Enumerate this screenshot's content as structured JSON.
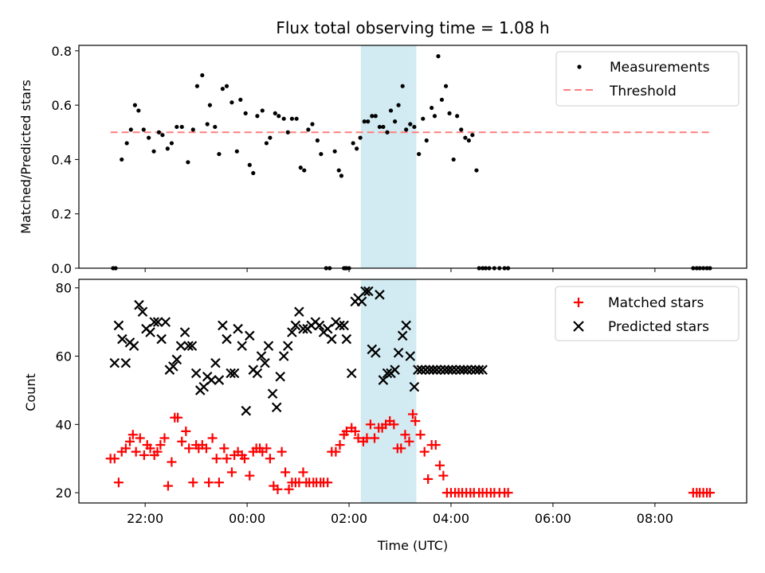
{
  "chart_data": [
    {
      "type": "scatter",
      "title": "Flux total observing time = 1.08 h",
      "xlabel": "",
      "ylabel": "Matched/Predicted stars",
      "x_unit": "hours relative to 00:00 UTC",
      "ylim": [
        0,
        0.82
      ],
      "yticks": [
        "0.0",
        "0.2",
        "0.4",
        "0.6",
        "0.8"
      ],
      "highlight_span": {
        "x0": 2.23,
        "x1": 3.32,
        "color": "#add8e6"
      },
      "threshold": {
        "y": 0.5,
        "x0": -2.68,
        "x1": 9.13,
        "color": "#ff7f7f"
      },
      "legend": {
        "location": "top-right",
        "entries": [
          "Measurements",
          "Threshold"
        ]
      },
      "series": [
        {
          "name": "Measurements",
          "marker": "dot",
          "color": "#000000",
          "x": [
            -2.63,
            -2.58,
            -2.46,
            -2.36,
            -2.28,
            -2.2,
            -2.13,
            -2.03,
            -1.93,
            -1.83,
            -1.73,
            -1.66,
            -1.56,
            -1.48,
            -1.38,
            -1.28,
            -1.16,
            -1.06,
            -0.98,
            -0.88,
            -0.78,
            -0.73,
            -0.63,
            -0.55,
            -0.48,
            -0.4,
            -0.3,
            -0.2,
            -0.13,
            -0.03,
            0.05,
            0.12,
            0.2,
            0.3,
            0.38,
            0.45,
            0.55,
            0.62,
            0.72,
            0.8,
            0.88,
            0.97,
            1.05,
            1.12,
            1.2,
            1.28,
            1.38,
            1.45,
            1.55,
            1.62,
            1.72,
            1.8,
            1.85,
            1.9,
            1.92,
            1.95,
            2.0,
            2.08,
            2.15,
            2.22,
            2.3,
            2.37,
            2.45,
            2.52,
            2.6,
            2.67,
            2.75,
            2.82,
            2.9,
            2.97,
            3.05,
            3.12,
            3.2,
            3.28,
            3.37,
            3.45,
            3.52,
            3.62,
            3.68,
            3.75,
            3.82,
            3.9,
            3.97,
            4.05,
            4.12,
            4.2,
            4.28,
            4.35,
            4.42,
            4.5,
            4.55,
            4.62,
            4.68,
            4.75,
            4.85,
            4.95,
            5.05,
            5.12,
            8.75,
            8.82,
            8.88,
            8.95,
            9.02,
            9.08
          ],
          "y": [
            0.0,
            0.0,
            0.4,
            0.46,
            0.51,
            0.6,
            0.58,
            0.51,
            0.48,
            0.43,
            0.5,
            0.49,
            0.44,
            0.46,
            0.52,
            0.52,
            0.39,
            0.51,
            0.67,
            0.71,
            0.53,
            0.6,
            0.52,
            0.42,
            0.66,
            0.67,
            0.61,
            0.43,
            0.62,
            0.57,
            0.38,
            0.35,
            0.56,
            0.58,
            0.46,
            0.48,
            0.57,
            0.56,
            0.55,
            0.5,
            0.55,
            0.55,
            0.37,
            0.36,
            0.51,
            0.53,
            0.47,
            0.42,
            0.0,
            0.0,
            0.43,
            0.36,
            0.34,
            0.0,
            0.0,
            0.0,
            0.0,
            0.46,
            0.44,
            0.48,
            0.54,
            0.54,
            0.56,
            0.56,
            0.52,
            0.52,
            0.5,
            0.58,
            0.54,
            0.6,
            0.67,
            0.51,
            0.53,
            0.52,
            0.42,
            0.55,
            0.47,
            0.59,
            0.56,
            0.78,
            0.62,
            0.67,
            0.57,
            0.4,
            0.56,
            0.51,
            0.48,
            0.47,
            0.49,
            0.36,
            0.0,
            0.0,
            0.0,
            0.0,
            0.0,
            0.0,
            0.0,
            0.0,
            0.0,
            0.0,
            0.0,
            0.0,
            0.0,
            0.0
          ]
        }
      ]
    },
    {
      "type": "scatter",
      "title": "",
      "xlabel": "Time (UTC)",
      "ylabel": "Count",
      "x_unit": "hours relative to 00:00 UTC",
      "xlim": [
        -3.3,
        9.8
      ],
      "xticks": [
        {
          "v": -2,
          "label": "22:00"
        },
        {
          "v": 0,
          "label": "00:00"
        },
        {
          "v": 2,
          "label": "02:00"
        },
        {
          "v": 4,
          "label": "04:00"
        },
        {
          "v": 6,
          "label": "06:00"
        },
        {
          "v": 8,
          "label": "08:00"
        }
      ],
      "ylim": [
        17,
        82.5
      ],
      "yticks": [
        "20",
        "40",
        "60",
        "80"
      ],
      "highlight_span": {
        "x0": 2.23,
        "x1": 3.32,
        "color": "#add8e6"
      },
      "legend": {
        "location": "top-right",
        "entries": [
          "Matched stars",
          "Predicted stars"
        ]
      },
      "series": [
        {
          "name": "Matched stars",
          "marker": "plus",
          "color": "#ff0000",
          "x": [
            -2.68,
            -2.6,
            -2.52,
            -2.46,
            -2.38,
            -2.3,
            -2.24,
            -2.18,
            -2.1,
            -2.02,
            -1.96,
            -1.9,
            -1.82,
            -1.76,
            -1.7,
            -1.62,
            -1.55,
            -1.48,
            -1.42,
            -1.36,
            -1.28,
            -1.2,
            -1.14,
            -1.06,
            -1.0,
            -0.95,
            -0.88,
            -0.8,
            -0.75,
            -0.68,
            -0.6,
            -0.55,
            -0.45,
            -0.4,
            -0.3,
            -0.25,
            -0.18,
            -0.1,
            -0.05,
            0.05,
            0.12,
            0.18,
            0.25,
            0.3,
            0.38,
            0.45,
            0.52,
            0.6,
            0.68,
            0.75,
            0.82,
            0.88,
            0.95,
            1.02,
            1.1,
            1.16,
            1.22,
            1.3,
            1.36,
            1.44,
            1.5,
            1.58,
            1.66,
            1.74,
            1.82,
            1.9,
            1.95,
            2.05,
            2.12,
            2.18,
            2.28,
            2.35,
            2.42,
            2.5,
            2.58,
            2.65,
            2.72,
            2.8,
            2.88,
            2.95,
            3.02,
            3.1,
            3.18,
            3.25,
            3.3,
            3.4,
            3.48,
            3.55,
            3.62,
            3.7,
            3.78,
            3.85,
            3.92,
            4.0,
            4.08,
            4.15,
            4.22,
            4.3,
            4.38,
            4.45,
            4.55,
            4.62,
            4.7,
            4.78,
            4.85,
            4.95,
            5.05,
            5.12,
            8.75,
            8.82,
            8.88,
            8.95,
            9.02,
            9.08
          ],
          "y": [
            30,
            30,
            23,
            32,
            33,
            35,
            37,
            32,
            36,
            31,
            34,
            33,
            31,
            32,
            34,
            36,
            22,
            29,
            42,
            42,
            35,
            38,
            33,
            23,
            34,
            33,
            34,
            33,
            23,
            36,
            30,
            23,
            33,
            30,
            26,
            31,
            32,
            31,
            30,
            25,
            32,
            33,
            33,
            32,
            33,
            30,
            22,
            21,
            32,
            26,
            21,
            23,
            23,
            23,
            26,
            23,
            23,
            23,
            23,
            23,
            23,
            23,
            32,
            32,
            34,
            37,
            38,
            39,
            38,
            36,
            35,
            36,
            40,
            36,
            39,
            39,
            40,
            41,
            40,
            33,
            33,
            37,
            35,
            43,
            41,
            37,
            32,
            24,
            34,
            34,
            28,
            25,
            20,
            20,
            20,
            20,
            20,
            20,
            20,
            20,
            20,
            20,
            20,
            20,
            20,
            20,
            20,
            20,
            20,
            20,
            20,
            20,
            20,
            20
          ],
          "x_fix": true
        },
        {
          "name": "Predicted stars",
          "marker": "x",
          "color": "#000000",
          "x": [
            -2.6,
            -2.52,
            -2.45,
            -2.38,
            -2.3,
            -2.22,
            -2.12,
            -2.05,
            -1.98,
            -1.9,
            -1.82,
            -1.75,
            -1.68,
            -1.6,
            -1.52,
            -1.45,
            -1.38,
            -1.3,
            -1.22,
            -1.15,
            -1.08,
            -1.0,
            -0.92,
            -0.85,
            -0.78,
            -0.7,
            -0.62,
            -0.55,
            -0.48,
            -0.4,
            -0.32,
            -0.25,
            -0.18,
            -0.1,
            -0.02,
            0.05,
            0.12,
            0.2,
            0.28,
            0.35,
            0.42,
            0.5,
            0.58,
            0.65,
            0.72,
            0.8,
            0.88,
            0.95,
            1.02,
            1.1,
            1.18,
            1.26,
            1.34,
            1.42,
            1.5,
            1.58,
            1.66,
            1.74,
            1.82,
            1.9,
            1.95,
            2.05,
            2.12,
            2.18,
            2.25,
            2.32,
            2.38,
            2.45,
            2.52,
            2.6,
            2.67,
            2.75,
            2.82,
            2.9,
            2.97,
            3.05,
            3.12,
            3.2,
            3.28,
            3.35,
            3.42,
            3.5,
            3.58,
            3.65,
            3.72,
            3.8,
            3.88,
            3.95,
            4.02,
            4.1,
            4.18,
            4.25,
            4.32,
            4.4,
            4.48,
            4.55,
            4.62
          ],
          "y": [
            58,
            69,
            65,
            58,
            64,
            63,
            75,
            73,
            68,
            67,
            70,
            70,
            65,
            70,
            56,
            57,
            59,
            63,
            67,
            63,
            63,
            55,
            50,
            51,
            54,
            53,
            58,
            53,
            69,
            65,
            55,
            55,
            68,
            63,
            44,
            66,
            56,
            55,
            60,
            58,
            63,
            49,
            45,
            54,
            60,
            63,
            67,
            69,
            73,
            68,
            68,
            69,
            70,
            69,
            67,
            68,
            65,
            70,
            69,
            69,
            65,
            55,
            76,
            77,
            76,
            79,
            79,
            62,
            61,
            78,
            53,
            55,
            55,
            56,
            61,
            66,
            69,
            60,
            51,
            56,
            56,
            56,
            56,
            56,
            56,
            56,
            56,
            56,
            56,
            56,
            56,
            56,
            56,
            56,
            56,
            56,
            56
          ]
        }
      ]
    }
  ]
}
